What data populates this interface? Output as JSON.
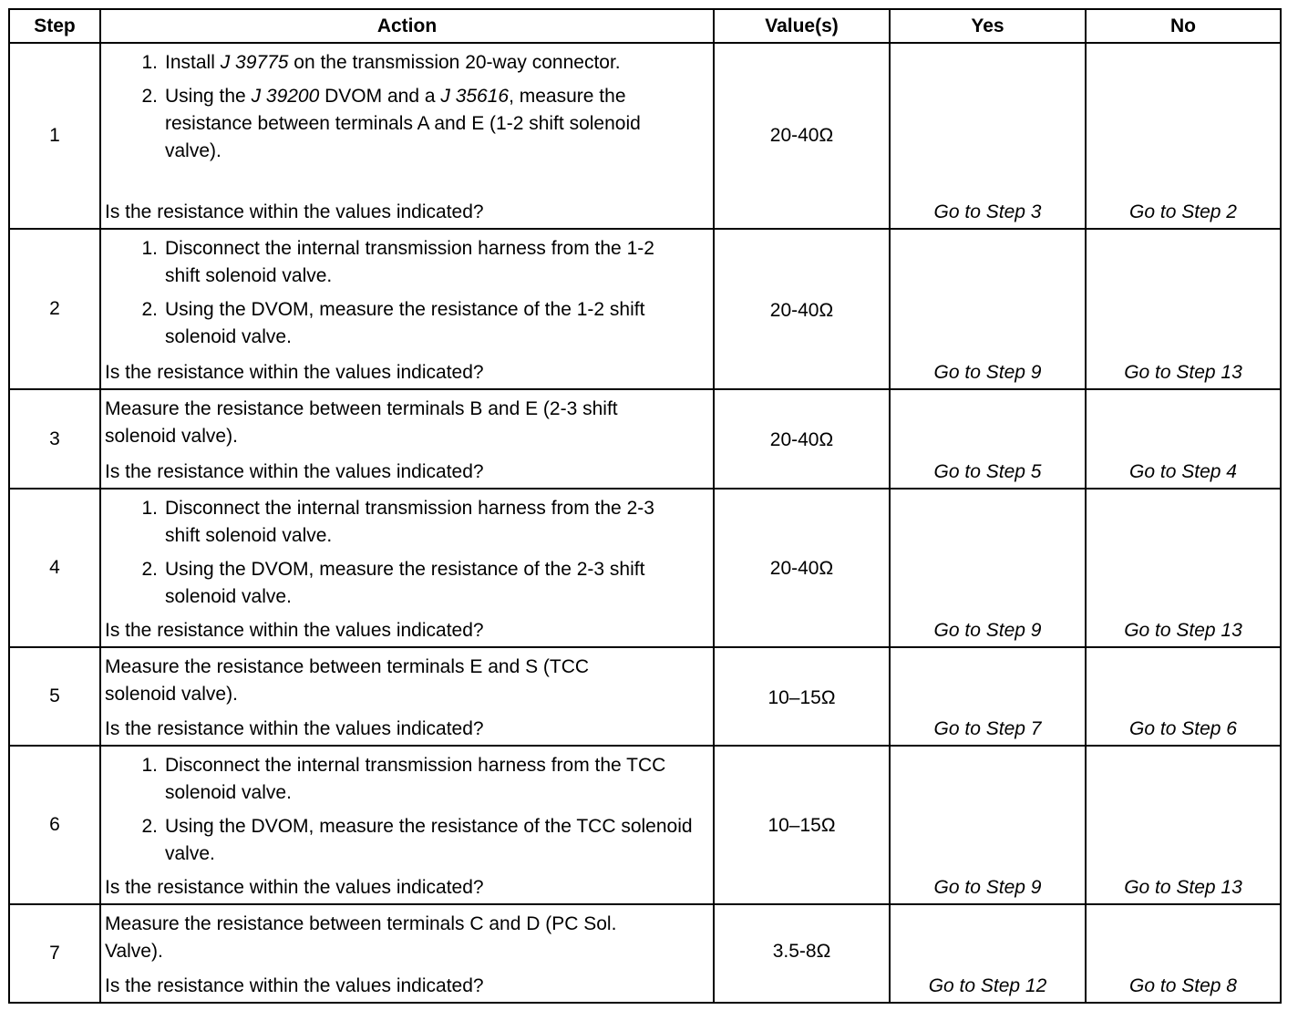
{
  "headers": {
    "step": "Step",
    "action": "Action",
    "values": "Value(s)",
    "yes": "Yes",
    "no": "No"
  },
  "rows": [
    {
      "step": "1",
      "value": "20-40Ω",
      "yes": "Go to Step 3",
      "no": "Go to Step 2",
      "numbered": true,
      "items": [
        {
          "num": "1.",
          "parts": [
            {
              "t": "Install "
            },
            {
              "t": "J 39775",
              "i": true
            },
            {
              "t": " on the transmission 20-way connector."
            }
          ]
        },
        {
          "num": "2.",
          "parts": [
            {
              "t": "Using the "
            },
            {
              "t": "J 39200",
              "i": true
            },
            {
              "t": " DVOM and a "
            },
            {
              "t": "J 35616",
              "i": true
            },
            {
              "t": ", measure the resistance between terminals A and E (1-2 shift solenoid valve)."
            }
          ]
        }
      ],
      "question": "Is the resistance within the values indicated?"
    },
    {
      "step": "2",
      "value": "20-40Ω",
      "yes": "Go to Step 9",
      "no": "Go to Step 13",
      "numbered": true,
      "items": [
        {
          "num": "1.",
          "parts": [
            {
              "t": "Disconnect the internal transmission harness from the 1-2 shift solenoid valve."
            }
          ]
        },
        {
          "num": "2.",
          "parts": [
            {
              "t": "Using the DVOM, measure the resistance of the 1-2 shift solenoid valve."
            }
          ]
        }
      ],
      "question": "Is the resistance within the values indicated?"
    },
    {
      "step": "3",
      "value": "20-40Ω",
      "yes": "Go to Step 5",
      "no": "Go to Step 4",
      "numbered": false,
      "items": [
        {
          "parts": [
            {
              "t": "Measure the resistance between terminals B and E (2-3 shift solenoid valve)."
            }
          ]
        }
      ],
      "question": "Is the resistance within the values indicated?"
    },
    {
      "step": "4",
      "value": "20-40Ω",
      "yes": "Go to Step 9",
      "no": "Go to Step 13",
      "numbered": true,
      "items": [
        {
          "num": "1.",
          "parts": [
            {
              "t": "Disconnect the internal transmission harness from the 2-3 shift solenoid valve."
            }
          ]
        },
        {
          "num": "2.",
          "parts": [
            {
              "t": "Using the DVOM, measure the resistance of the 2-3 shift solenoid valve."
            }
          ]
        }
      ],
      "question": "Is the resistance within the values indicated?"
    },
    {
      "step": "5",
      "value": "10–15Ω",
      "yes": "Go to Step 7",
      "no": "Go to Step 6",
      "numbered": false,
      "items": [
        {
          "parts": [
            {
              "t": "Measure the resistance between terminals E and S (TCC solenoid valve)."
            }
          ]
        }
      ],
      "question": "Is the resistance within the values indicated?"
    },
    {
      "step": "6",
      "value": "10–15Ω",
      "yes": "Go to Step 9",
      "no": "Go to Step 13",
      "numbered": true,
      "items": [
        {
          "num": "1.",
          "parts": [
            {
              "t": "Disconnect the internal transmission harness from the TCC solenoid valve."
            }
          ]
        },
        {
          "num": "2.",
          "parts": [
            {
              "t": "Using the DVOM, measure the resistance of the TCC solenoid valve."
            }
          ]
        }
      ],
      "question": "Is the resistance within the values indicated?"
    },
    {
      "step": "7",
      "value": "3.5-8Ω",
      "yes": "Go to Step 12",
      "no": "Go to Step 8",
      "numbered": false,
      "items": [
        {
          "parts": [
            {
              "t": "Measure the resistance between terminals C and D (PC Sol. Valve)."
            }
          ]
        }
      ],
      "question": "Is the resistance within the values indicated?"
    }
  ]
}
